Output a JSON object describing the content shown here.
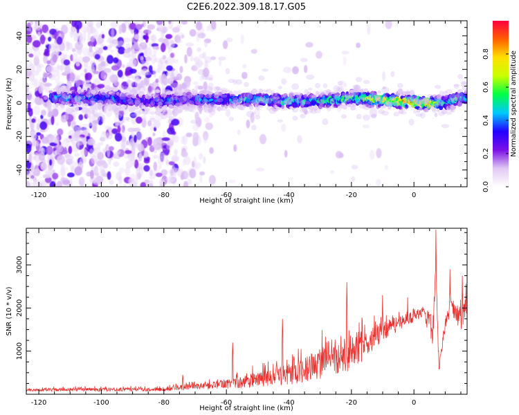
{
  "title": "C2E6.2022.309.18.17.G05",
  "colors": {
    "spectral_rainbow": [
      "#ffffff",
      "#e0c8f4",
      "#7a10e6",
      "#2200ff",
      "#00c8ff",
      "#00ff44",
      "#c8ff00",
      "#ffe000",
      "#ff6000",
      "#ff0040"
    ],
    "snr_line": "#e8312f"
  },
  "chart_data": [
    {
      "type": "heatmap",
      "xlabel": "Height of straight line (km)",
      "ylabel": "Frequency (Hz)",
      "xlim": [
        -124,
        17
      ],
      "ylim": [
        -50,
        49
      ],
      "x_ticks": [
        -120,
        -100,
        -80,
        -60,
        -40,
        -20,
        0
      ],
      "y_ticks": [
        -40,
        -20,
        0,
        20,
        40
      ],
      "colorbar": {
        "label": "Normalized spectral amplitude",
        "range": [
          0,
          1
        ],
        "ticks": [
          0.0,
          0.2,
          0.4,
          0.6,
          0.8
        ]
      },
      "ridge_profile": [
        {
          "x": -115,
          "y": 3,
          "amp": 0.45
        },
        {
          "x": -100,
          "y": 3,
          "amp": 0.45
        },
        {
          "x": -85,
          "y": 1,
          "amp": 0.35
        },
        {
          "x": -72,
          "y": 2,
          "amp": 0.42
        },
        {
          "x": -60,
          "y": 2,
          "amp": 0.45
        },
        {
          "x": -50,
          "y": 2,
          "amp": 0.5
        },
        {
          "x": -40,
          "y": 1,
          "amp": 0.52
        },
        {
          "x": -30,
          "y": 1,
          "amp": 0.55
        },
        {
          "x": -20,
          "y": 3,
          "amp": 0.6
        },
        {
          "x": -12,
          "y": 2,
          "amp": 0.75
        },
        {
          "x": -5,
          "y": 1,
          "amp": 0.85
        },
        {
          "x": 5,
          "y": 0,
          "amp": 0.8
        },
        {
          "x": 10,
          "y": 0,
          "amp": 0.5
        },
        {
          "x": 15,
          "y": 3,
          "amp": 0.55
        }
      ]
    },
    {
      "type": "line",
      "xlabel": "Height of straight line (km)",
      "ylabel": "SNR (10 * v/v)",
      "xlim": [
        -124,
        17
      ],
      "ylim": [
        0,
        3850
      ],
      "x_ticks": [
        -120,
        -100,
        -80,
        -60,
        -40,
        -20,
        0
      ],
      "y_ticks": [
        1000,
        2000,
        3000
      ],
      "series": [
        {
          "envelope": [
            {
              "x": -124,
              "mean": 100,
              "amp": 60
            },
            {
              "x": -100,
              "mean": 110,
              "amp": 80
            },
            {
              "x": -80,
              "mean": 110,
              "amp": 80
            },
            {
              "x": -75,
              "mean": 150,
              "amp": 120
            },
            {
              "x": -65,
              "mean": 200,
              "amp": 180
            },
            {
              "x": -55,
              "mean": 280,
              "amp": 280
            },
            {
              "x": -45,
              "mean": 380,
              "amp": 400
            },
            {
              "x": -35,
              "mean": 550,
              "amp": 600
            },
            {
              "x": -28,
              "mean": 750,
              "amp": 700
            },
            {
              "x": -22,
              "mean": 900,
              "amp": 800
            },
            {
              "x": -18,
              "mean": 1050,
              "amp": 800
            },
            {
              "x": -10,
              "mean": 1450,
              "amp": 450
            },
            {
              "x": -3,
              "mean": 1700,
              "amp": 300
            },
            {
              "x": 3,
              "mean": 1900,
              "amp": 250
            },
            {
              "x": 6,
              "mean": 1500,
              "amp": 700
            },
            {
              "x": 7,
              "mean": 2800,
              "amp": 600
            },
            {
              "x": 8,
              "mean": 600,
              "amp": 150
            },
            {
              "x": 10,
              "mean": 1600,
              "amp": 300
            },
            {
              "x": 12,
              "mean": 2100,
              "amp": 450
            },
            {
              "x": 15,
              "mean": 1700,
              "amp": 600
            },
            {
              "x": 17,
              "mean": 2100,
              "amp": 500
            }
          ],
          "peaks": [
            {
              "x": 7,
              "y": 3820
            },
            {
              "x": 11.5,
              "y": 2900
            },
            {
              "x": 15.5,
              "y": 2750
            },
            {
              "x": -21.5,
              "y": 2600
            },
            {
              "x": -10,
              "y": 2300
            },
            {
              "x": -2,
              "y": 2250
            },
            {
              "x": -42,
              "y": 1750
            },
            {
              "x": -58,
              "y": 1200
            },
            {
              "x": -74,
              "y": 450
            }
          ]
        }
      ]
    }
  ]
}
